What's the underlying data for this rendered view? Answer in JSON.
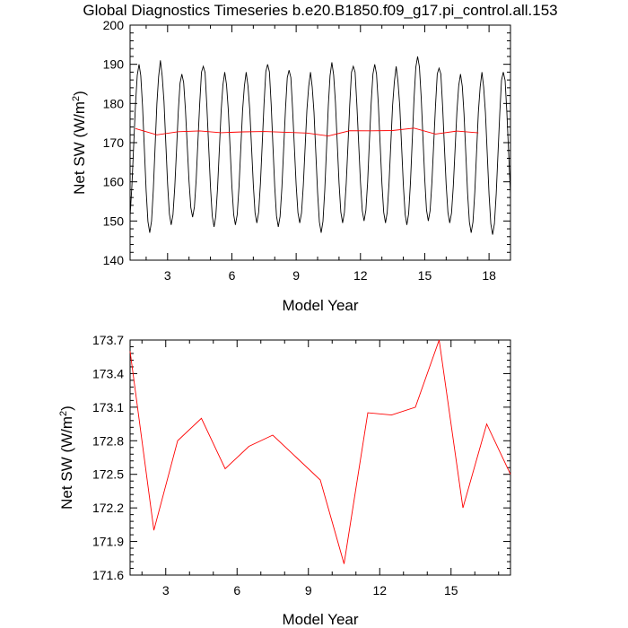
{
  "title": "Global Diagnostics Timeseries b.e20.B1850.f09_g17.pi_control.all.153",
  "colors": {
    "monthly": "#000000",
    "annual": "#ff0000",
    "axes": "#000000"
  },
  "chart_data": [
    {
      "type": "line",
      "xlabel": "Model Year",
      "ylabel": "Net SW (W/m",
      "ylabel_sup": "2",
      "ylabel_tail": ")",
      "xlim": [
        1.25,
        19.0
      ],
      "ylim": [
        140,
        200
      ],
      "xticks": [
        3,
        6,
        9,
        12,
        15,
        18
      ],
      "xtick_labels": [
        "3",
        "6",
        "9",
        "12",
        "15",
        "18"
      ],
      "yticks": [
        140,
        150,
        160,
        170,
        180,
        190,
        200
      ],
      "ytick_labels": [
        "140",
        "150",
        "160",
        "170",
        "180",
        "190",
        "200"
      ],
      "grid": false,
      "series": [
        {
          "key": "monthly",
          "style": "monthly seasonal cycle",
          "x_start": 1.25,
          "x_step": 0.0833333,
          "peaks": [
            190,
            191,
            187.5,
            189.5,
            188,
            188,
            190,
            188.5,
            188,
            190.5,
            189.5,
            190,
            189.5,
            192,
            189,
            187.5,
            188
          ],
          "troughs": [
            148.5,
            147,
            149,
            151,
            148.5,
            149,
            149.5,
            148.5,
            149.5,
            147,
            149.5,
            150,
            149.5,
            149,
            150,
            149.5,
            147,
            146.5
          ]
        },
        {
          "key": "annual",
          "style": "annual mean",
          "x": [
            1.5,
            2.5,
            3.5,
            4.5,
            5.5,
            6.5,
            7.5,
            8.5,
            9.5,
            10.5,
            11.5,
            12.5,
            13.5,
            14.5,
            15.5,
            16.5,
            17.5
          ],
          "y": [
            173.6,
            172.0,
            172.8,
            173.0,
            172.55,
            172.75,
            172.85,
            172.65,
            172.45,
            171.7,
            173.05,
            173.03,
            173.1,
            173.7,
            172.2,
            172.95,
            172.5
          ]
        }
      ]
    },
    {
      "type": "line",
      "xlabel": "Model Year",
      "ylabel": "Net SW (W/m",
      "ylabel_sup": "2",
      "ylabel_tail": ")",
      "xlim": [
        1.5,
        17.5
      ],
      "ylim": [
        171.6,
        173.7
      ],
      "xticks": [
        3,
        6,
        9,
        12,
        15
      ],
      "xtick_labels": [
        "3",
        "6",
        "9",
        "12",
        "15"
      ],
      "yticks": [
        171.6,
        171.9,
        172.2,
        172.5,
        172.8,
        173.1,
        173.4,
        173.7
      ],
      "ytick_labels": [
        "171.6",
        "171.9",
        "172.2",
        "172.5",
        "172.8",
        "173.1",
        "173.4",
        "173.7"
      ],
      "grid": false,
      "series": [
        {
          "key": "annual",
          "x": [
            1.5,
            2.5,
            3.5,
            4.5,
            5.5,
            6.5,
            7.5,
            8.5,
            9.5,
            10.5,
            11.5,
            12.5,
            13.5,
            14.5,
            15.5,
            16.5,
            17.5
          ],
          "y": [
            173.6,
            172.0,
            172.8,
            173.0,
            172.55,
            172.75,
            172.85,
            172.65,
            172.45,
            171.7,
            173.05,
            173.03,
            173.1,
            173.7,
            172.2,
            172.95,
            172.5
          ]
        }
      ]
    }
  ]
}
